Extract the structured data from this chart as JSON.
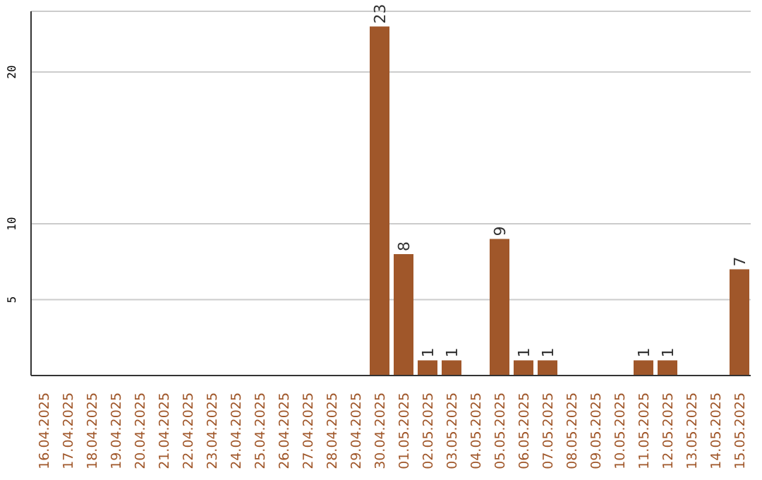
{
  "chart_data": {
    "type": "bar",
    "categories": [
      "16.04.2025",
      "17.04.2025",
      "18.04.2025",
      "19.04.2025",
      "20.04.2025",
      "21.04.2025",
      "22.04.2025",
      "23.04.2025",
      "24.04.2025",
      "25.04.2025",
      "26.04.2025",
      "27.04.2025",
      "28.04.2025",
      "29.04.2025",
      "30.04.2025",
      "01.05.2025",
      "02.05.2025",
      "03.05.2025",
      "04.05.2025",
      "05.05.2025",
      "06.05.2025",
      "07.05.2025",
      "08.05.2025",
      "09.05.2025",
      "10.05.2025",
      "11.05.2025",
      "12.05.2025",
      "13.05.2025",
      "14.05.2025",
      "15.05.2025"
    ],
    "values": [
      0,
      0,
      0,
      0,
      0,
      0,
      0,
      0,
      0,
      0,
      0,
      0,
      0,
      0,
      23,
      8,
      1,
      1,
      0,
      9,
      1,
      1,
      0,
      0,
      0,
      1,
      1,
      0,
      0,
      7
    ],
    "value_labels": [
      null,
      null,
      null,
      null,
      null,
      null,
      null,
      null,
      null,
      null,
      null,
      null,
      null,
      null,
      "23",
      "8",
      "1",
      "1",
      null,
      "9",
      "1",
      "1",
      null,
      null,
      null,
      "1",
      "1",
      null,
      null,
      "7"
    ],
    "color": "#a0572a",
    "ylim": [
      0,
      24
    ],
    "yticks": [
      5,
      10,
      20
    ],
    "grid": "y"
  }
}
